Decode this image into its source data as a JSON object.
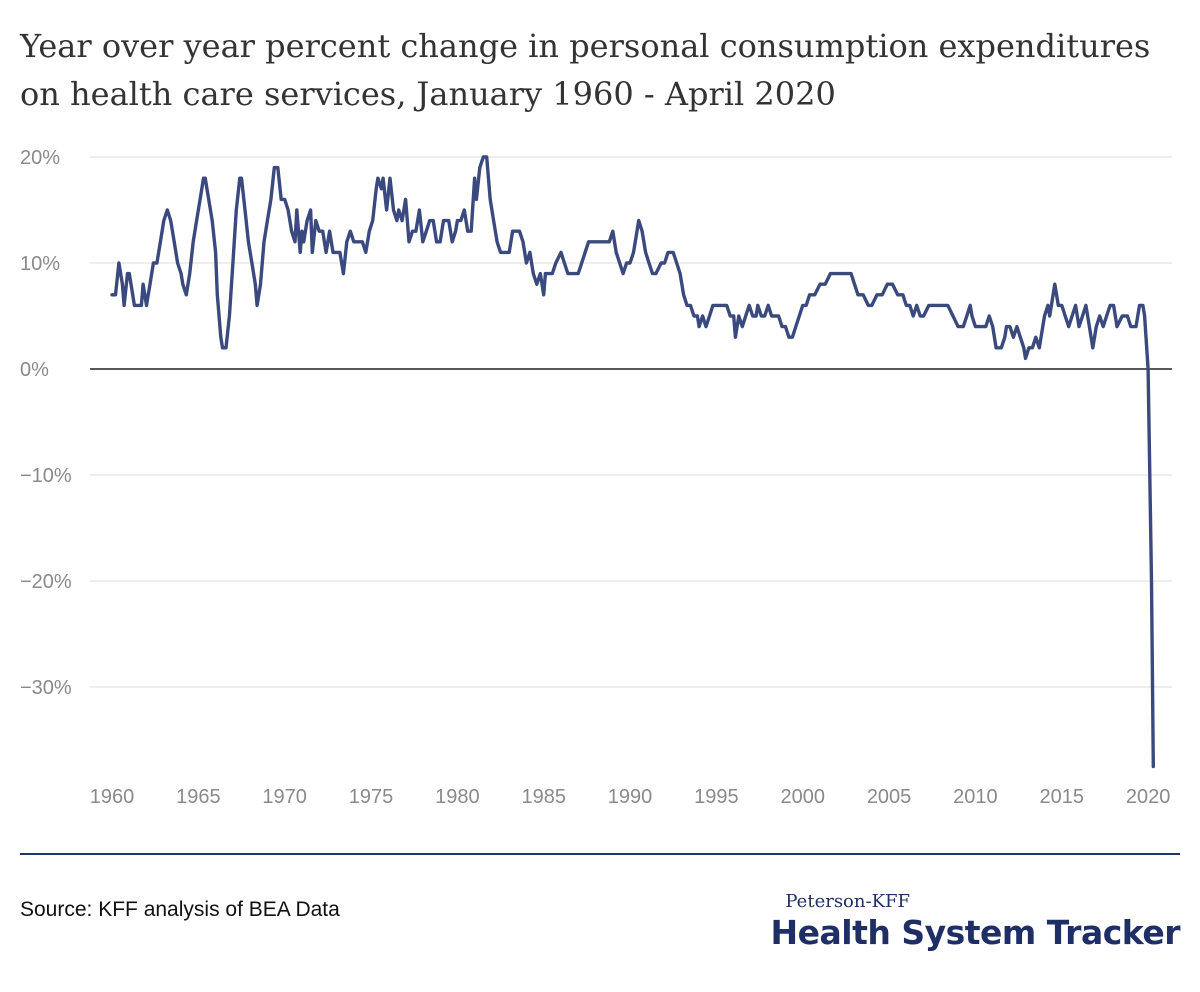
{
  "title": "Year over year percent change in personal consumption expenditures on health care services, January 1960 - April 2020",
  "source": "Source: KFF analysis of BEA Data",
  "brand": {
    "top": "Peterson-KFF",
    "main": "Health System Tracker"
  },
  "colors": {
    "line": "#3b4a7e",
    "grid": "#e3e3e3",
    "zero_line": "#222222",
    "brand": "#1f2f66"
  },
  "chart_data": {
    "type": "line",
    "title": "Year over year percent change in personal consumption expenditures on health care services, January 1960 - April 2020",
    "xlabel": "",
    "ylabel": "",
    "xlim": [
      1960,
      2020.4
    ],
    "ylim": [
      -38,
      20
    ],
    "grid": true,
    "y_ticks": [
      20,
      10,
      0,
      -10,
      -20,
      -30
    ],
    "y_tick_labels": [
      "20%",
      "10%",
      "0%",
      "−10%",
      "−20%",
      "−30%"
    ],
    "x_ticks": [
      1960,
      1965,
      1970,
      1975,
      1980,
      1985,
      1990,
      1995,
      2000,
      2005,
      2010,
      2015,
      2020
    ],
    "x_tick_labels": [
      "1960",
      "1965",
      "1970",
      "1975",
      "1980",
      "1985",
      "1990",
      "1995",
      "2000",
      "2005",
      "2010",
      "2015",
      "2020"
    ],
    "series": [
      {
        "values": [
          [
            1960.0,
            7
          ],
          [
            1960.2,
            7
          ],
          [
            1960.4,
            10
          ],
          [
            1960.6,
            8
          ],
          [
            1960.7,
            6
          ],
          [
            1960.9,
            9
          ],
          [
            1961.0,
            9
          ],
          [
            1961.2,
            7
          ],
          [
            1961.3,
            6
          ],
          [
            1961.5,
            6
          ],
          [
            1961.7,
            6
          ],
          [
            1961.8,
            8
          ],
          [
            1962.0,
            6
          ],
          [
            1962.2,
            8
          ],
          [
            1962.4,
            10
          ],
          [
            1962.6,
            10
          ],
          [
            1962.8,
            12
          ],
          [
            1963.0,
            14
          ],
          [
            1963.2,
            15
          ],
          [
            1963.4,
            14
          ],
          [
            1963.6,
            12
          ],
          [
            1963.8,
            10
          ],
          [
            1964.0,
            9
          ],
          [
            1964.1,
            8
          ],
          [
            1964.3,
            7
          ],
          [
            1964.5,
            9
          ],
          [
            1964.7,
            12
          ],
          [
            1964.9,
            14
          ],
          [
            1965.1,
            16
          ],
          [
            1965.3,
            18
          ],
          [
            1965.4,
            18
          ],
          [
            1965.6,
            16
          ],
          [
            1965.8,
            14
          ],
          [
            1966.0,
            11
          ],
          [
            1966.1,
            7
          ],
          [
            1966.3,
            3
          ],
          [
            1966.4,
            2
          ],
          [
            1966.6,
            2
          ],
          [
            1966.8,
            5
          ],
          [
            1967.0,
            10
          ],
          [
            1967.2,
            15
          ],
          [
            1967.4,
            18
          ],
          [
            1967.5,
            18
          ],
          [
            1967.7,
            15
          ],
          [
            1967.9,
            12
          ],
          [
            1968.1,
            10
          ],
          [
            1968.3,
            8
          ],
          [
            1968.4,
            6
          ],
          [
            1968.6,
            8
          ],
          [
            1968.8,
            12
          ],
          [
            1969.0,
            14
          ],
          [
            1969.2,
            16
          ],
          [
            1969.4,
            19
          ],
          [
            1969.6,
            19
          ],
          [
            1969.8,
            16
          ],
          [
            1970.0,
            16
          ],
          [
            1970.2,
            15
          ],
          [
            1970.4,
            13
          ],
          [
            1970.6,
            12
          ],
          [
            1970.7,
            15
          ],
          [
            1970.9,
            11
          ],
          [
            1971.0,
            13
          ],
          [
            1971.1,
            12
          ],
          [
            1971.3,
            14
          ],
          [
            1971.5,
            15
          ],
          [
            1971.6,
            11
          ],
          [
            1971.8,
            14
          ],
          [
            1972.0,
            13
          ],
          [
            1972.2,
            13
          ],
          [
            1972.4,
            11
          ],
          [
            1972.6,
            13
          ],
          [
            1972.8,
            11
          ],
          [
            1973.0,
            11
          ],
          [
            1973.2,
            11
          ],
          [
            1973.4,
            9
          ],
          [
            1973.6,
            12
          ],
          [
            1973.8,
            13
          ],
          [
            1974.0,
            12
          ],
          [
            1974.2,
            12
          ],
          [
            1974.5,
            12
          ],
          [
            1974.7,
            11
          ],
          [
            1974.9,
            13
          ],
          [
            1975.1,
            14
          ],
          [
            1975.3,
            17
          ],
          [
            1975.4,
            18
          ],
          [
            1975.6,
            17
          ],
          [
            1975.7,
            18
          ],
          [
            1975.9,
            15
          ],
          [
            1976.1,
            18
          ],
          [
            1976.3,
            15
          ],
          [
            1976.5,
            14
          ],
          [
            1976.6,
            15
          ],
          [
            1976.8,
            14
          ],
          [
            1977.0,
            16
          ],
          [
            1977.2,
            12
          ],
          [
            1977.4,
            13
          ],
          [
            1977.6,
            13
          ],
          [
            1977.8,
            15
          ],
          [
            1978.0,
            12
          ],
          [
            1978.2,
            13
          ],
          [
            1978.4,
            14
          ],
          [
            1978.6,
            14
          ],
          [
            1978.8,
            12
          ],
          [
            1979.0,
            12
          ],
          [
            1979.2,
            14
          ],
          [
            1979.5,
            14
          ],
          [
            1979.7,
            12
          ],
          [
            1979.9,
            13
          ],
          [
            1980.0,
            14
          ],
          [
            1980.2,
            14
          ],
          [
            1980.4,
            15
          ],
          [
            1980.6,
            13
          ],
          [
            1980.8,
            13
          ],
          [
            1981.0,
            18
          ],
          [
            1981.1,
            16
          ],
          [
            1981.3,
            19
          ],
          [
            1981.5,
            20
          ],
          [
            1981.7,
            20
          ],
          [
            1981.9,
            16
          ],
          [
            1982.1,
            14
          ],
          [
            1982.3,
            12
          ],
          [
            1982.5,
            11
          ],
          [
            1982.8,
            11
          ],
          [
            1983.0,
            11
          ],
          [
            1983.2,
            13
          ],
          [
            1983.4,
            13
          ],
          [
            1983.6,
            13
          ],
          [
            1983.8,
            12
          ],
          [
            1984.0,
            10
          ],
          [
            1984.2,
            11
          ],
          [
            1984.4,
            9
          ],
          [
            1984.6,
            8
          ],
          [
            1984.8,
            9
          ],
          [
            1985.0,
            7
          ],
          [
            1985.1,
            9
          ],
          [
            1985.3,
            9
          ],
          [
            1985.5,
            9
          ],
          [
            1985.7,
            10
          ],
          [
            1986.0,
            11
          ],
          [
            1986.2,
            10
          ],
          [
            1986.4,
            9
          ],
          [
            1986.6,
            9
          ],
          [
            1986.8,
            9
          ],
          [
            1987.0,
            9
          ],
          [
            1987.2,
            10
          ],
          [
            1987.4,
            11
          ],
          [
            1987.6,
            12
          ],
          [
            1987.8,
            12
          ],
          [
            1988.0,
            12
          ],
          [
            1988.4,
            12
          ],
          [
            1988.8,
            12
          ],
          [
            1989.0,
            13
          ],
          [
            1989.2,
            11
          ],
          [
            1989.4,
            10
          ],
          [
            1989.6,
            9
          ],
          [
            1989.8,
            10
          ],
          [
            1990.0,
            10
          ],
          [
            1990.2,
            11
          ],
          [
            1990.4,
            13
          ],
          [
            1990.5,
            14
          ],
          [
            1990.7,
            13
          ],
          [
            1990.9,
            11
          ],
          [
            1991.1,
            10
          ],
          [
            1991.3,
            9
          ],
          [
            1991.5,
            9
          ],
          [
            1991.8,
            10
          ],
          [
            1992.0,
            10
          ],
          [
            1992.2,
            11
          ],
          [
            1992.5,
            11
          ],
          [
            1992.7,
            10
          ],
          [
            1992.9,
            9
          ],
          [
            1993.1,
            7
          ],
          [
            1993.3,
            6
          ],
          [
            1993.5,
            6
          ],
          [
            1993.7,
            5
          ],
          [
            1993.9,
            5
          ],
          [
            1994.0,
            4
          ],
          [
            1994.2,
            5
          ],
          [
            1994.4,
            4
          ],
          [
            1994.6,
            5
          ],
          [
            1994.8,
            6
          ],
          [
            1995.0,
            6
          ],
          [
            1995.3,
            6
          ],
          [
            1995.6,
            6
          ],
          [
            1995.8,
            5
          ],
          [
            1996.0,
            5
          ],
          [
            1996.1,
            3
          ],
          [
            1996.3,
            5
          ],
          [
            1996.5,
            4
          ],
          [
            1996.7,
            5
          ],
          [
            1996.9,
            6
          ],
          [
            1997.1,
            5
          ],
          [
            1997.3,
            5
          ],
          [
            1997.4,
            6
          ],
          [
            1997.6,
            5
          ],
          [
            1997.8,
            5
          ],
          [
            1998.0,
            6
          ],
          [
            1998.2,
            5
          ],
          [
            1998.4,
            5
          ],
          [
            1998.6,
            5
          ],
          [
            1998.8,
            4
          ],
          [
            1999.0,
            4
          ],
          [
            1999.2,
            3
          ],
          [
            1999.4,
            3
          ],
          [
            1999.6,
            4
          ],
          [
            1999.8,
            5
          ],
          [
            2000.0,
            6
          ],
          [
            2000.2,
            6
          ],
          [
            2000.4,
            7
          ],
          [
            2000.7,
            7
          ],
          [
            2001.0,
            8
          ],
          [
            2001.3,
            8
          ],
          [
            2001.6,
            9
          ],
          [
            2002.0,
            9
          ],
          [
            2002.4,
            9
          ],
          [
            2002.8,
            9
          ],
          [
            2003.0,
            8
          ],
          [
            2003.2,
            7
          ],
          [
            2003.5,
            7
          ],
          [
            2003.8,
            6
          ],
          [
            2004.0,
            6
          ],
          [
            2004.3,
            7
          ],
          [
            2004.6,
            7
          ],
          [
            2004.9,
            8
          ],
          [
            2005.2,
            8
          ],
          [
            2005.5,
            7
          ],
          [
            2005.8,
            7
          ],
          [
            2006.0,
            6
          ],
          [
            2006.2,
            6
          ],
          [
            2006.4,
            5
          ],
          [
            2006.6,
            6
          ],
          [
            2006.8,
            5
          ],
          [
            2007.0,
            5
          ],
          [
            2007.3,
            6
          ],
          [
            2007.6,
            6
          ],
          [
            2008.0,
            6
          ],
          [
            2008.4,
            6
          ],
          [
            2008.7,
            5
          ],
          [
            2009.0,
            4
          ],
          [
            2009.3,
            4
          ],
          [
            2009.5,
            5
          ],
          [
            2009.7,
            6
          ],
          [
            2009.8,
            5
          ],
          [
            2010.0,
            4
          ],
          [
            2010.3,
            4
          ],
          [
            2010.6,
            4
          ],
          [
            2010.8,
            5
          ],
          [
            2011.0,
            4
          ],
          [
            2011.2,
            2
          ],
          [
            2011.5,
            2
          ],
          [
            2011.7,
            3
          ],
          [
            2011.8,
            4
          ],
          [
            2012.0,
            4
          ],
          [
            2012.2,
            3
          ],
          [
            2012.4,
            4
          ],
          [
            2012.6,
            3
          ],
          [
            2012.8,
            2
          ],
          [
            2012.9,
            1
          ],
          [
            2013.1,
            2
          ],
          [
            2013.3,
            2
          ],
          [
            2013.5,
            3
          ],
          [
            2013.7,
            2
          ],
          [
            2014.0,
            5
          ],
          [
            2014.2,
            6
          ],
          [
            2014.3,
            5
          ],
          [
            2014.5,
            7
          ],
          [
            2014.6,
            8
          ],
          [
            2014.8,
            6
          ],
          [
            2015.0,
            6
          ],
          [
            2015.2,
            5
          ],
          [
            2015.4,
            4
          ],
          [
            2015.6,
            5
          ],
          [
            2015.8,
            6
          ],
          [
            2016.0,
            4
          ],
          [
            2016.2,
            5
          ],
          [
            2016.4,
            6
          ],
          [
            2016.6,
            4
          ],
          [
            2016.8,
            2
          ],
          [
            2017.0,
            4
          ],
          [
            2017.2,
            5
          ],
          [
            2017.4,
            4
          ],
          [
            2017.6,
            5
          ],
          [
            2017.8,
            6
          ],
          [
            2018.0,
            6
          ],
          [
            2018.2,
            4
          ],
          [
            2018.5,
            5
          ],
          [
            2018.8,
            5
          ],
          [
            2019.0,
            4
          ],
          [
            2019.3,
            4
          ],
          [
            2019.5,
            6
          ],
          [
            2019.7,
            6
          ],
          [
            2019.8,
            5
          ],
          [
            2020.0,
            0
          ],
          [
            2020.2,
            -20
          ],
          [
            2020.3,
            -37.5
          ]
        ]
      }
    ]
  }
}
